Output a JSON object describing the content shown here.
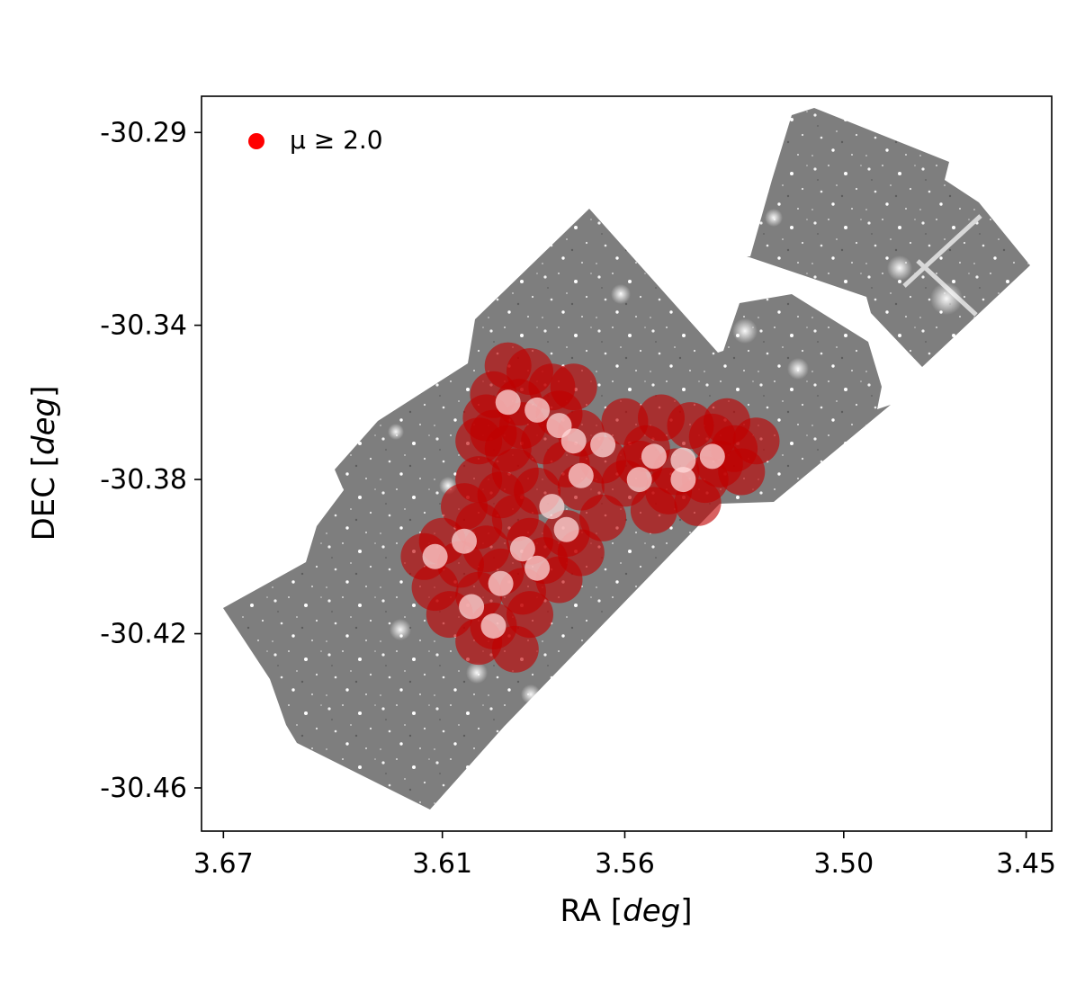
{
  "chart_data": {
    "type": "scatter",
    "title": "",
    "xlabel": "RA [deg]",
    "xlabel_parts": {
      "prefix": "RA [",
      "unit": "deg",
      "suffix": "]"
    },
    "ylabel": "DEC [deg]",
    "ylabel_parts": {
      "prefix": "DEC [",
      "unit": "deg",
      "suffix": "]"
    },
    "xlim": [
      3.676,
      3.443
    ],
    "ylim": [
      -30.4712,
      -30.2806
    ],
    "x_inverted": true,
    "xticks": [
      3.67,
      3.61,
      3.56,
      3.5,
      3.45
    ],
    "xtick_labels": [
      "3.67",
      "3.61",
      "3.56",
      "3.50",
      "3.45"
    ],
    "yticks": [
      -30.29,
      -30.34,
      -30.38,
      -30.42,
      -30.46
    ],
    "ytick_labels": [
      "-30.29",
      "-30.34",
      "-30.38",
      "-30.42",
      "-30.46"
    ],
    "grid": false,
    "legend": {
      "placement": "top-left",
      "entries": [
        {
          "label": "μ ≥ 2.0",
          "marker": "circle",
          "color": "#ff0000"
        }
      ]
    },
    "background": "grayscale mosaic image of stellar field",
    "colors": {
      "points": "#c00000",
      "bright_points": "#ffd8d8",
      "legend_marker": "#ff0000",
      "mosaic": "#808080",
      "axes": "#000000"
    },
    "series": [
      {
        "label_ref": "legend.entries.0",
        "points": [
          [
            3.592,
            -30.3505
          ],
          [
            3.586,
            -30.352
          ],
          [
            3.58,
            -30.356
          ],
          [
            3.596,
            -30.358
          ],
          [
            3.589,
            -30.36
          ],
          [
            3.598,
            -30.364
          ],
          [
            3.588,
            -30.366
          ],
          [
            3.578,
            -30.363
          ],
          [
            3.6,
            -30.37
          ],
          [
            3.592,
            -30.372
          ],
          [
            3.582,
            -30.37
          ],
          [
            3.572,
            -30.368
          ],
          [
            3.56,
            -30.365
          ],
          [
            3.55,
            -30.364
          ],
          [
            3.542,
            -30.366
          ],
          [
            3.536,
            -30.369
          ],
          [
            3.53,
            -30.372
          ],
          [
            3.524,
            -30.37
          ],
          [
            3.534,
            -30.376
          ],
          [
            3.546,
            -30.378
          ],
          [
            3.556,
            -30.376
          ],
          [
            3.566,
            -30.375
          ],
          [
            3.576,
            -30.376
          ],
          [
            3.59,
            -30.378
          ],
          [
            3.6,
            -30.38
          ],
          [
            3.594,
            -30.384
          ],
          [
            3.584,
            -30.383
          ],
          [
            3.572,
            -30.382
          ],
          [
            3.56,
            -30.381
          ],
          [
            3.548,
            -30.383
          ],
          [
            3.538,
            -30.38
          ],
          [
            3.528,
            -30.378
          ],
          [
            3.54,
            -30.386
          ],
          [
            3.552,
            -30.388
          ],
          [
            3.59,
            -30.39
          ],
          [
            3.6,
            -30.392
          ],
          [
            3.61,
            -30.396
          ],
          [
            3.598,
            -30.398
          ],
          [
            3.586,
            -30.396
          ],
          [
            3.576,
            -30.394
          ],
          [
            3.566,
            -30.39
          ],
          [
            3.615,
            -30.4
          ],
          [
            3.605,
            -30.402
          ],
          [
            3.594,
            -30.404
          ],
          [
            3.582,
            -30.401
          ],
          [
            3.572,
            -30.399
          ],
          [
            3.612,
            -30.408
          ],
          [
            3.6,
            -30.41
          ],
          [
            3.588,
            -30.409
          ],
          [
            3.578,
            -30.406
          ],
          [
            3.608,
            -30.415
          ],
          [
            3.596,
            -30.418
          ],
          [
            3.586,
            -30.415
          ],
          [
            3.6,
            -30.422
          ],
          [
            3.59,
            -30.424
          ],
          [
            3.604,
            -30.387
          ],
          [
            3.596,
            -30.368
          ],
          [
            3.574,
            -30.356
          ],
          [
            3.554,
            -30.372
          ],
          [
            3.532,
            -30.365
          ]
        ],
        "bright_points": [
          [
            3.584,
            -30.362
          ],
          [
            3.578,
            -30.366
          ],
          [
            3.574,
            -30.37
          ],
          [
            3.566,
            -30.371
          ],
          [
            3.552,
            -30.374
          ],
          [
            3.544,
            -30.375
          ],
          [
            3.556,
            -30.38
          ],
          [
            3.572,
            -30.379
          ],
          [
            3.58,
            -30.387
          ],
          [
            3.576,
            -30.393
          ],
          [
            3.588,
            -30.398
          ],
          [
            3.584,
            -30.403
          ],
          [
            3.594,
            -30.407
          ],
          [
            3.602,
            -30.413
          ],
          [
            3.612,
            -30.4
          ],
          [
            3.596,
            -30.418
          ],
          [
            3.544,
            -30.38
          ],
          [
            3.536,
            -30.374
          ],
          [
            3.592,
            -30.36
          ],
          [
            3.604,
            -30.396
          ]
        ]
      }
    ]
  }
}
